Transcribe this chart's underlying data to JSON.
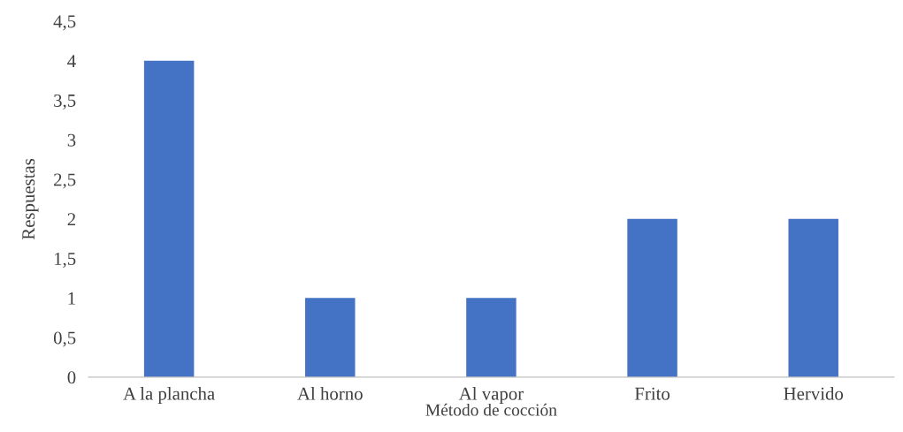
{
  "chart_data": {
    "type": "bar",
    "xlabel": "Método de cocción",
    "ylabel": "Respuestas",
    "categories": [
      "A la plancha",
      "Al horno",
      "Al vapor",
      "Frito",
      "Hervido"
    ],
    "values": [
      4,
      1,
      1,
      2,
      2
    ],
    "color": "#4472c4",
    "ylim": [
      0,
      4.5
    ],
    "yticks": [
      0,
      {
        "value": 0.5,
        "label": "0,5"
      },
      1,
      {
        "value": 1.5,
        "label": "1,5"
      },
      2,
      {
        "value": 2.5,
        "label": "2,5"
      },
      3,
      {
        "value": 3.5,
        "label": "3,5"
      },
      4,
      {
        "value": 4.5,
        "label": "4,5"
      }
    ],
    "grid": false,
    "legend": false
  }
}
